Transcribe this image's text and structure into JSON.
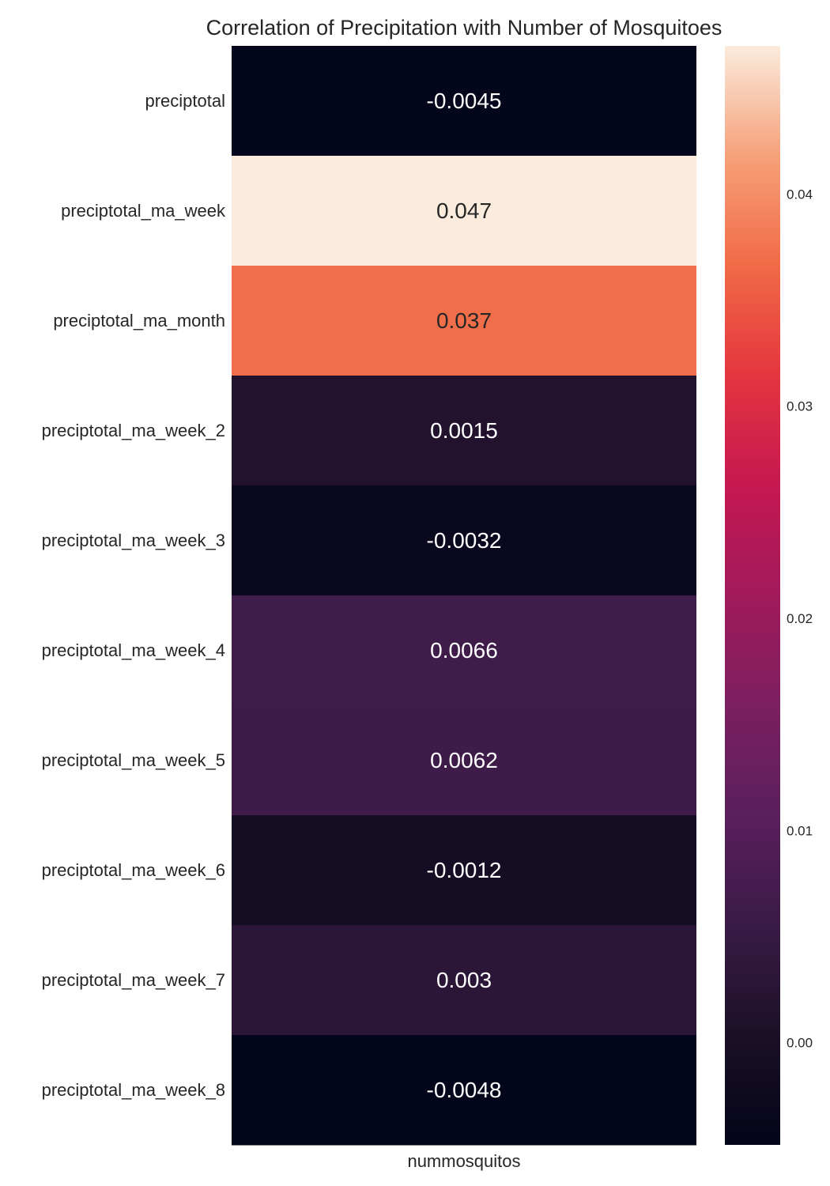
{
  "chart_data": {
    "type": "heatmap",
    "title": "Correlation of Precipitation with Number of Mosquitoes",
    "columns": [
      "nummosquitos"
    ],
    "rows": [
      "preciptotal",
      "preciptotal_ma_week",
      "preciptotal_ma_month",
      "preciptotal_ma_week_2",
      "preciptotal_ma_week_3",
      "preciptotal_ma_week_4",
      "preciptotal_ma_week_5",
      "preciptotal_ma_week_6",
      "preciptotal_ma_week_7",
      "preciptotal_ma_week_8"
    ],
    "values": [
      -0.0045,
      0.047,
      0.037,
      0.0015,
      -0.0032,
      0.0066,
      0.0062,
      -0.0012,
      0.003,
      -0.0048
    ],
    "annotations": [
      "-0.0045",
      "0.047",
      "0.037",
      "0.0015",
      "-0.0032",
      "0.0066",
      "0.0062",
      "-0.0012",
      "0.003",
      "-0.0048"
    ],
    "colormap": "rocket",
    "colorbar": {
      "range": [
        -0.0048,
        0.047
      ],
      "ticks": [
        0.0,
        0.01,
        0.02,
        0.03,
        0.04
      ],
      "tick_labels": [
        "0.00",
        "0.01",
        "0.02",
        "0.03",
        "0.04"
      ]
    }
  }
}
